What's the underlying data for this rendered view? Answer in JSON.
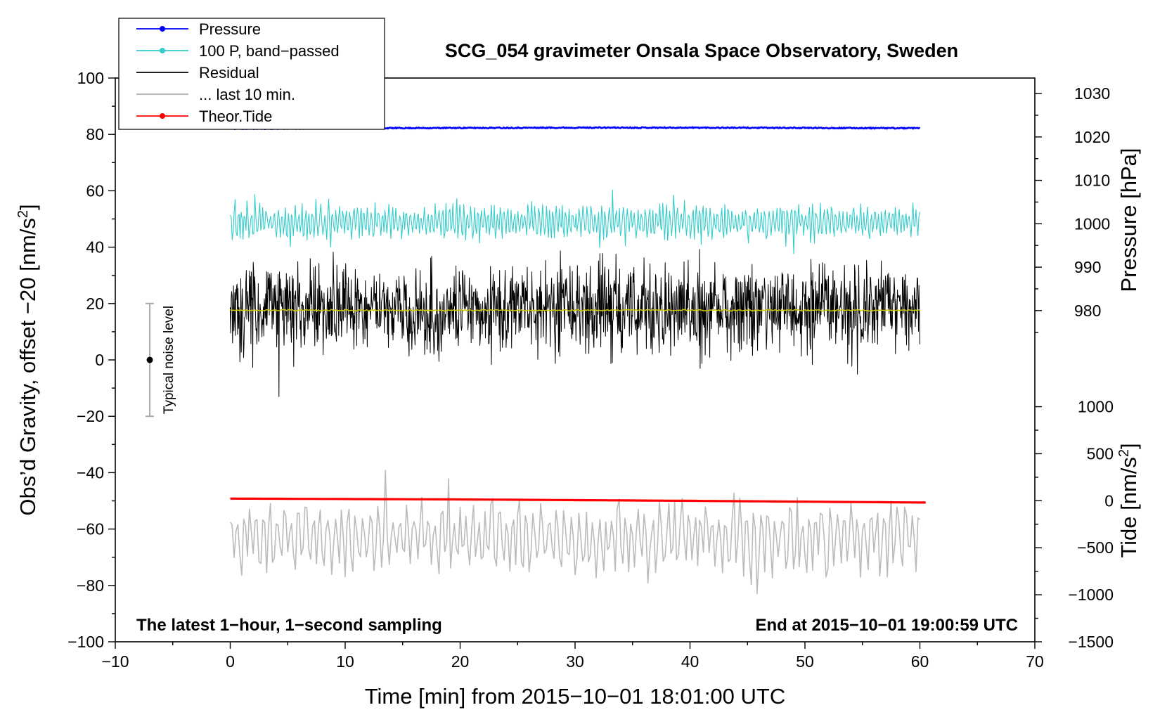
{
  "chart_data": {
    "type": "line",
    "title": "SCG_054 gravimeter Onsala Space Observatory, Sweden",
    "xlabel": "Time [min] from 2015−10−01 18:01:00 UTC",
    "ylabel_left": "Obs’d Gravity, offset −20 [nm/s",
    "ylabel_left_sup": "2",
    "ylabel_left_end": "]",
    "ylabel_right_pressure": "Pressure [hPa]",
    "ylabel_right_tide": "Tide [nm/s",
    "ylabel_right_tide_sup": "2",
    "ylabel_right_tide_end": "]",
    "xlim": [
      -10,
      70
    ],
    "ylim": [
      -100,
      100
    ],
    "x_ticks": [
      -10,
      0,
      10,
      20,
      30,
      40,
      50,
      60,
      70
    ],
    "x_tick_labels": [
      "−10",
      "0",
      "10",
      "20",
      "30",
      "40",
      "50",
      "60",
      "70"
    ],
    "y_ticks": [
      -100,
      -80,
      -60,
      -40,
      -20,
      0,
      20,
      40,
      60,
      80,
      100
    ],
    "y_tick_labels": [
      "−100",
      "−80",
      "−60",
      "−40",
      "−20",
      "0",
      "20",
      "40",
      "60",
      "80",
      "100"
    ],
    "pressure_axis": {
      "ticks": [
        980,
        990,
        1000,
        1010,
        1020,
        1030
      ],
      "tick_labels": [
        "980",
        "990",
        "1000",
        "1010",
        "1020",
        "1030"
      ],
      "map_to_left": [
        [
          980,
          17.5
        ],
        [
          1030,
          94.5
        ]
      ]
    },
    "tide_axis": {
      "ticks": [
        -1500,
        -1000,
        -500,
        0,
        500,
        1000
      ],
      "tick_labels": [
        "−1500",
        "−1000",
        "−500",
        "0",
        "500",
        "1000"
      ],
      "map_to_left": [
        [
          -1500,
          -100
        ],
        [
          1000,
          -16.6
        ]
      ]
    },
    "series": [
      {
        "name": "Pressure",
        "color": "#0000ff",
        "x": [
          0,
          10,
          20,
          30,
          40,
          50,
          60
        ],
        "values": [
          82.0,
          82.2,
          82.3,
          82.4,
          82.4,
          82.3,
          82.2
        ],
        "amplitude": 0.4,
        "seed": 11
      },
      {
        "name": "100 P, band−passed",
        "color": "#33cccc",
        "x": [
          0,
          60
        ],
        "values": [
          49,
          49
        ],
        "amplitude": 5,
        "seed": 23
      },
      {
        "name": "Residual",
        "color": "#000000",
        "x": [
          0,
          60
        ],
        "values": [
          18,
          18
        ],
        "amplitude": 9,
        "seed": 37
      },
      {
        "name": "... last 10 min.",
        "color": "#bbbbbb",
        "x": [
          0,
          60
        ],
        "values": [
          -63,
          -63
        ],
        "amplitude": 11,
        "seed": 51
      },
      {
        "name": "Theor.Tide",
        "color": "#ff0000",
        "x": [
          0,
          20,
          40,
          60.5
        ],
        "values": [
          -49.2,
          -49.5,
          -50.0,
          -50.6
        ],
        "amplitude": 0,
        "seed": 0
      },
      {
        "name": "smoothed residual",
        "color": "#cccc00",
        "x": [
          0,
          60
        ],
        "values": [
          17.6,
          17.6
        ],
        "amplitude": 0.5,
        "seed": 67
      }
    ],
    "legend": [
      "Pressure",
      "100 P, band−passed",
      "Residual",
      "... last 10 min.",
      "Theor.Tide"
    ],
    "legend_position": "top-left",
    "annotations": {
      "bottom_left": "The latest 1−hour, 1−second sampling",
      "bottom_right": "End at 2015−10−01 19:00:59 UTC"
    },
    "noise_bar": {
      "label": "Typical noise level",
      "x": -7,
      "center": 0,
      "low": -20,
      "high": 20
    }
  }
}
